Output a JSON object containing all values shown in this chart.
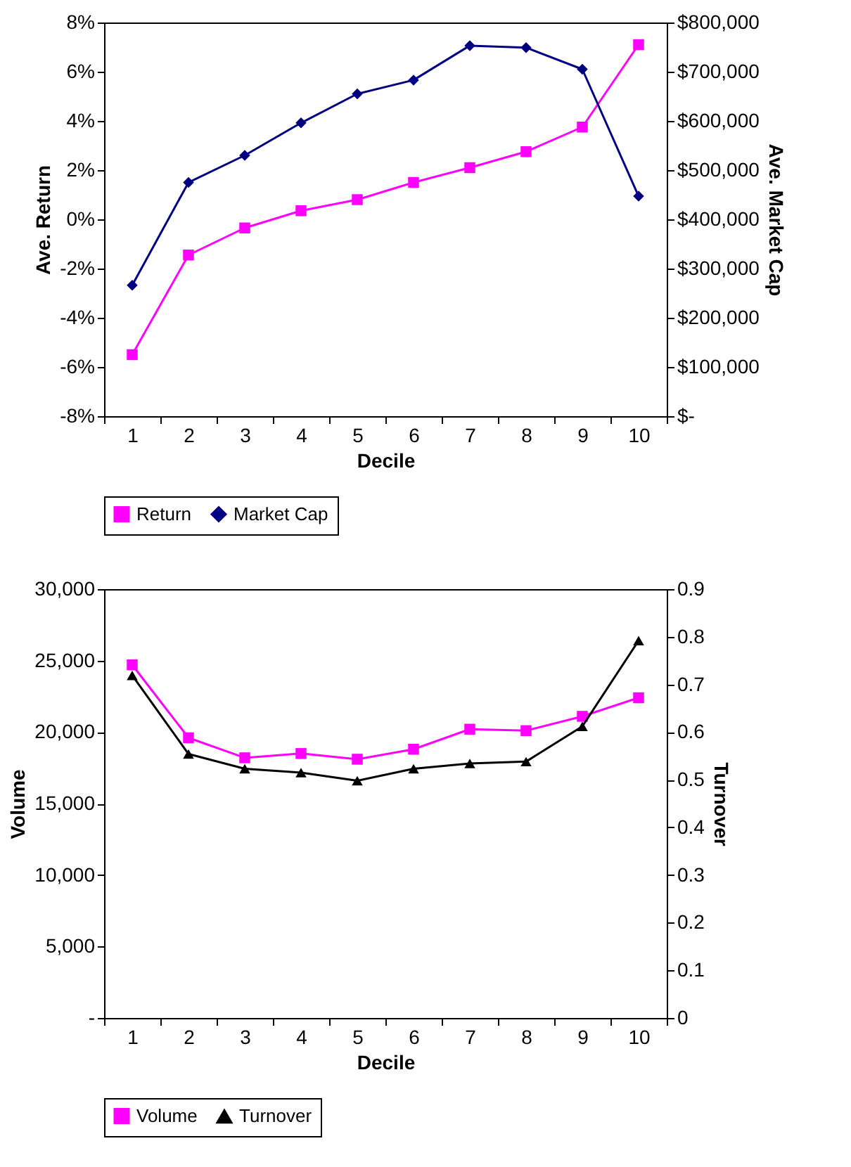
{
  "chart_data": [
    {
      "type": "line",
      "xlabel": "Decile",
      "ylabel": "Ave. Return",
      "y2label": "Ave. Market Cap",
      "categories": [
        "1",
        "2",
        "3",
        "4",
        "5",
        "6",
        "7",
        "8",
        "9",
        "10"
      ],
      "ylim": [
        -8,
        8
      ],
      "yticks": [
        {
          "value": -8,
          "label": "-8%"
        },
        {
          "value": -6,
          "label": "-6%"
        },
        {
          "value": -4,
          "label": "-4%"
        },
        {
          "value": -2,
          "label": "-2%"
        },
        {
          "value": 0,
          "label": "0%"
        },
        {
          "value": 2,
          "label": "2%"
        },
        {
          "value": 4,
          "label": "4%"
        },
        {
          "value": 6,
          "label": "6%"
        },
        {
          "value": 8,
          "label": "8%"
        }
      ],
      "y2lim": [
        0,
        800000
      ],
      "y2ticks": [
        {
          "value": 0,
          "label": "$-"
        },
        {
          "value": 100000,
          "label": "$100,000"
        },
        {
          "value": 200000,
          "label": "$200,000"
        },
        {
          "value": 300000,
          "label": "$300,000"
        },
        {
          "value": 400000,
          "label": "$400,000"
        },
        {
          "value": 500000,
          "label": "$500,000"
        },
        {
          "value": 600000,
          "label": "$600,000"
        },
        {
          "value": 700000,
          "label": "$700,000"
        },
        {
          "value": 800000,
          "label": "$800,000"
        }
      ],
      "grid": false,
      "legend": "bottom",
      "series": [
        {
          "name": "Return",
          "color": "#ff00ff",
          "marker": "square",
          "values": [
            -5.5,
            -1.45,
            -0.35,
            0.35,
            0.8,
            1.5,
            2.1,
            2.75,
            3.75,
            7.1
          ]
        },
        {
          "name": "Market Cap",
          "color": "#000080",
          "marker": "diamond",
          "axis": "y2",
          "values": [
            266000,
            475000,
            530000,
            596000,
            655000,
            683000,
            753000,
            749000,
            705000,
            447000
          ]
        }
      ]
    },
    {
      "type": "line",
      "xlabel": "Decile",
      "ylabel": "Volume",
      "y2label": "Turnover",
      "categories": [
        "1",
        "2",
        "3",
        "4",
        "5",
        "6",
        "7",
        "8",
        "9",
        "10"
      ],
      "ylim": [
        0,
        30000
      ],
      "yticks": [
        {
          "value": 0,
          "label": "-"
        },
        {
          "value": 5000,
          "label": "5,000"
        },
        {
          "value": 10000,
          "label": "10,000"
        },
        {
          "value": 15000,
          "label": "15,000"
        },
        {
          "value": 20000,
          "label": "20,000"
        },
        {
          "value": 25000,
          "label": "25,000"
        },
        {
          "value": 30000,
          "label": "30,000"
        }
      ],
      "y2lim": [
        0,
        0.9
      ],
      "y2ticks": [
        0,
        0.1,
        0.2,
        0.3,
        0.4,
        0.5,
        0.6,
        0.7,
        0.8,
        0.9
      ],
      "grid": false,
      "legend": "bottom",
      "series": [
        {
          "name": "Volume",
          "color": "#ff00ff",
          "marker": "square",
          "values": [
            24700,
            19600,
            18200,
            18500,
            18100,
            18800,
            20200,
            20100,
            21100,
            22400
          ]
        },
        {
          "name": "Turnover",
          "color": "#000000",
          "marker": "triangle",
          "axis": "y2",
          "values": [
            0.719,
            0.554,
            0.523,
            0.515,
            0.498,
            0.523,
            0.534,
            0.538,
            0.612,
            0.792
          ]
        }
      ]
    }
  ]
}
